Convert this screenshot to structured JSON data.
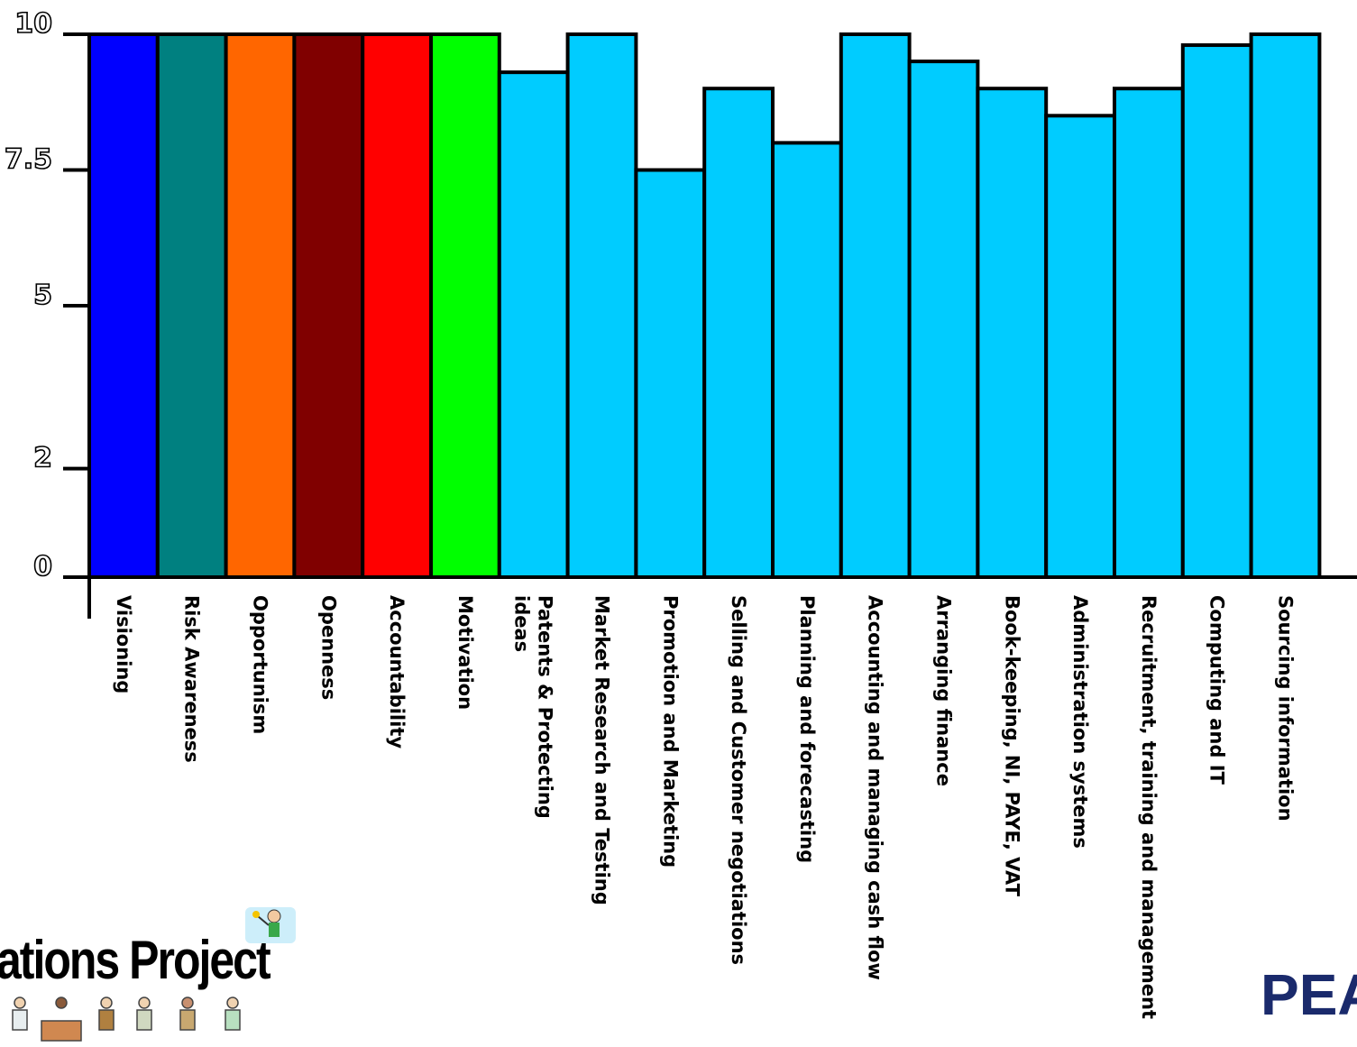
{
  "chart_data": {
    "type": "bar",
    "categories": [
      "Visioning",
      "Risk Awareness",
      "Opportunism",
      "Openness",
      "Accountability",
      "Motivation",
      "Patents & Protecting ideas",
      "Market Research and Testing",
      "Promotion and Marketing",
      "Selling and Customer negotiations",
      "Planning and forecasting",
      "Accounting and managing cash flow",
      "Arranging finance",
      "Book-keeping, NI, PAYE, VAT",
      "Administration systems",
      "Recruitment, training and management",
      "Computing and IT",
      "Sourcing information"
    ],
    "values": [
      10,
      10,
      10,
      10,
      10,
      10,
      9.3,
      10,
      7.5,
      9,
      8,
      10,
      9.5,
      9,
      8.5,
      9,
      9.8,
      10
    ],
    "colors": [
      "#0000ff",
      "#008080",
      "#ff6600",
      "#800000",
      "#ff0000",
      "#00ff00",
      "#00ccff",
      "#00ccff",
      "#00ccff",
      "#00ccff",
      "#00ccff",
      "#00ccff",
      "#00ccff",
      "#00ccff",
      "#00ccff",
      "#00ccff",
      "#00ccff",
      "#00ccff"
    ],
    "yticks": [
      "10",
      "7.5",
      "5",
      "2",
      "0"
    ],
    "ylim": [
      0,
      10
    ],
    "title": "",
    "xlabel": "",
    "ylabel": ""
  },
  "footer": {
    "project_title": "ations Project",
    "brand": "PEA"
  }
}
